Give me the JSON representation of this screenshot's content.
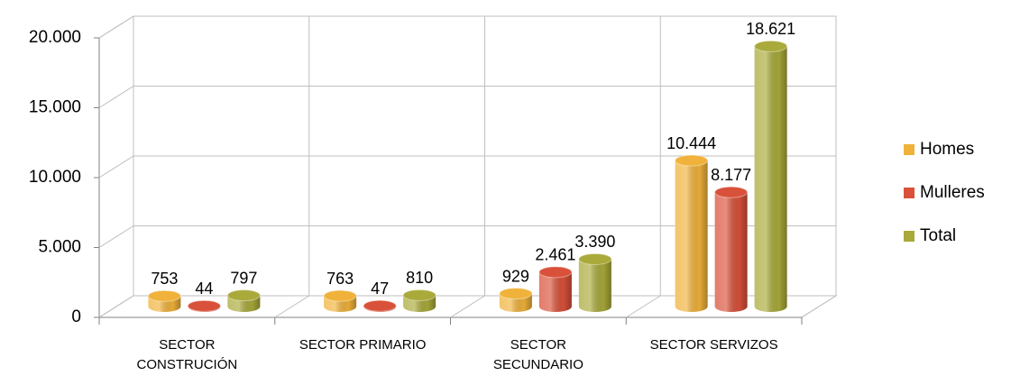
{
  "chart_data": {
    "type": "bar3d",
    "categories": [
      "SECTOR CONSTRUCIÓN",
      "SECTOR PRIMARIO",
      "SECTOR SECUNDARIO",
      "SECTOR SERVIZOS"
    ],
    "series": [
      {
        "name": "Homes",
        "color": "#f0b23a",
        "values": [
          753,
          763,
          929,
          10444
        ],
        "value_labels": [
          "753",
          "763",
          "929",
          "10.444"
        ]
      },
      {
        "name": "Mulleres",
        "color": "#d9513a",
        "values": [
          44,
          47,
          2461,
          8177
        ],
        "value_labels": [
          "44",
          "47",
          "2.461",
          "8.177"
        ]
      },
      {
        "name": "Total",
        "color": "#a9aa3a",
        "values": [
          797,
          810,
          3390,
          18621
        ],
        "value_labels": [
          "797",
          "810",
          "3.390",
          "18.621"
        ]
      }
    ],
    "ylim": [
      0,
      20000
    ],
    "yticks": [
      0,
      {
        "value": 5000,
        "label": "5.000"
      },
      {
        "value": 10000,
        "label": "10.000"
      },
      {
        "value": 15000,
        "label": "15.000"
      },
      {
        "value": 20000,
        "label": "20.000"
      }
    ],
    "grid": true,
    "legend": "right"
  }
}
